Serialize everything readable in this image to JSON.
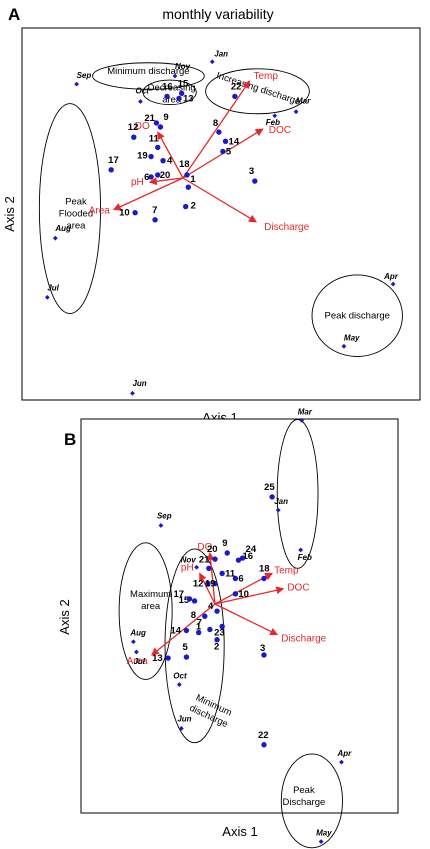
{
  "figure": {
    "colors": {
      "site_point": "#1a1acc",
      "month_marker": "#1a1acc",
      "vector": "#e8282a",
      "ellipse": "#000000"
    }
  },
  "chart_data": [
    {
      "type": "scatter",
      "panel": "A",
      "title": "monthly variability",
      "xlabel": "Axis 1",
      "ylabel": "Axis 2",
      "grid": false,
      "sites": [
        {
          "label": "1",
          "x": 0.04,
          "y": -0.09
        },
        {
          "label": "2",
          "x": 0.02,
          "y": -0.28
        },
        {
          "label": "3",
          "x": 0.54,
          "y": -0.03
        },
        {
          "label": "4",
          "x": -0.15,
          "y": 0.17
        },
        {
          "label": "5",
          "x": 0.3,
          "y": 0.26
        },
        {
          "label": "6",
          "x": -0.24,
          "y": 0.01
        },
        {
          "label": "7",
          "x": -0.21,
          "y": -0.41
        },
        {
          "label": "8",
          "x": 0.27,
          "y": 0.45
        },
        {
          "label": "9",
          "x": -0.17,
          "y": 0.5
        },
        {
          "label": "10",
          "x": -0.36,
          "y": -0.34
        },
        {
          "label": "11",
          "x": -0.19,
          "y": 0.3
        },
        {
          "label": "12",
          "x": -0.37,
          "y": 0.4
        },
        {
          "label": "13",
          "x": -0.03,
          "y": 0.78
        },
        {
          "label": "14",
          "x": 0.32,
          "y": 0.36
        },
        {
          "label": "15",
          "x": -0.01,
          "y": 0.83
        },
        {
          "label": "16",
          "x": -0.12,
          "y": 0.8
        },
        {
          "label": "17",
          "x": -0.54,
          "y": 0.08
        },
        {
          "label": "18",
          "x": 0.03,
          "y": 0.03
        },
        {
          "label": "19",
          "x": -0.24,
          "y": 0.21
        },
        {
          "label": "20",
          "x": -0.19,
          "y": 0.03
        },
        {
          "label": "21",
          "x": -0.2,
          "y": 0.54
        },
        {
          "label": "22",
          "x": 0.39,
          "y": 0.8
        }
      ],
      "months": [
        {
          "label": "Jan",
          "x": 0.22,
          "y": 1.14
        },
        {
          "label": "Feb",
          "x": 0.69,
          "y": 0.61
        },
        {
          "label": "Mar",
          "x": 0.85,
          "y": 0.65
        },
        {
          "label": "Apr",
          "x": 1.58,
          "y": -1.04
        },
        {
          "label": "May",
          "x": 1.21,
          "y": -1.65
        },
        {
          "label": "Jun",
          "x": -0.38,
          "y": -2.11
        },
        {
          "label": "Jul",
          "x": -1.02,
          "y": -1.17
        },
        {
          "label": "Aug",
          "x": -0.96,
          "y": -0.59
        },
        {
          "label": "Sep",
          "x": -0.8,
          "y": 0.92
        },
        {
          "label": "Oct",
          "x": -0.32,
          "y": 0.75
        },
        {
          "label": "Nov",
          "x": -0.06,
          "y": 1.0
        }
      ],
      "vectors": [
        {
          "label": "Temp",
          "x": 0.5,
          "y": 0.95
        },
        {
          "label": "DOC",
          "x": 0.6,
          "y": 0.48
        },
        {
          "label": "Discharge",
          "x": 0.55,
          "y": -0.43
        },
        {
          "label": "DO",
          "x": -0.19,
          "y": 0.45
        },
        {
          "label": "pH",
          "x": -0.25,
          "y": -0.04
        },
        {
          "label": "Area",
          "x": -0.52,
          "y": -0.31
        }
      ],
      "groups": [
        {
          "label": "Minimum discharge",
          "cx": -0.26,
          "cy": 1.0,
          "rx": 0.42,
          "ry": 0.13
        },
        {
          "label": "Decreasing area",
          "cx": -0.1,
          "cy": 0.84,
          "rx": 0.2,
          "ry": 0.12
        },
        {
          "label": "Increasing discharge",
          "cx": 0.56,
          "cy": 0.85,
          "rx": 0.39,
          "ry": 0.22
        },
        {
          "label": "Peak Flooded area",
          "cx": -0.85,
          "cy": -0.3,
          "rx": 0.23,
          "ry": 1.03
        },
        {
          "label": "Peak discharge",
          "cx": 1.31,
          "cy": -1.35,
          "rx": 0.34,
          "ry": 0.4
        }
      ]
    },
    {
      "type": "scatter",
      "panel": "B",
      "title": "",
      "xlabel": "Axis 1",
      "ylabel": "Axis 2",
      "grid": false,
      "sites": [
        {
          "label": "1",
          "x": -0.05,
          "y": -0.25
        },
        {
          "label": "2",
          "x": 0.02,
          "y": -0.35
        },
        {
          "label": "3",
          "x": 0.48,
          "y": -0.5
        },
        {
          "label": "4",
          "x": 0.02,
          "y": -0.07
        },
        {
          "label": "5",
          "x": -0.28,
          "y": -0.52
        },
        {
          "label": "6",
          "x": 0.2,
          "y": 0.25
        },
        {
          "label": "7",
          "x": -0.16,
          "y": -0.28
        },
        {
          "label": "8",
          "x": -0.1,
          "y": -0.12
        },
        {
          "label": "9",
          "x": 0.12,
          "y": 0.5
        },
        {
          "label": "10",
          "x": 0.2,
          "y": 0.1
        },
        {
          "label": "11",
          "x": 0.07,
          "y": 0.3
        },
        {
          "label": "12",
          "x": -0.07,
          "y": 0.2
        },
        {
          "label": "13",
          "x": -0.46,
          "y": -0.53
        },
        {
          "label": "14",
          "x": -0.28,
          "y": -0.26
        },
        {
          "label": "15",
          "x": -0.2,
          "y": 0.03
        },
        {
          "label": "16",
          "x": 0.23,
          "y": 0.43
        },
        {
          "label": "17",
          "x": -0.25,
          "y": 0.05
        },
        {
          "label": "18",
          "x": 0.48,
          "y": 0.25
        },
        {
          "label": "19",
          "x": 0.0,
          "y": 0.2
        },
        {
          "label": "20",
          "x": 0.0,
          "y": 0.44
        },
        {
          "label": "21",
          "x": -0.06,
          "y": 0.35
        },
        {
          "label": "22",
          "x": 0.48,
          "y": -1.38
        },
        {
          "label": "23",
          "x": 0.07,
          "y": -0.22
        },
        {
          "label": "24",
          "x": 0.27,
          "y": 0.45
        },
        {
          "label": "25",
          "x": 0.56,
          "y": 1.05
        }
      ],
      "months": [
        {
          "label": "Jan",
          "x": 0.62,
          "y": 0.92
        },
        {
          "label": "Feb",
          "x": 0.84,
          "y": 0.53
        },
        {
          "label": "Mar",
          "x": 0.85,
          "y": 1.8
        },
        {
          "label": "Apr",
          "x": 1.24,
          "y": -1.55
        },
        {
          "label": "May",
          "x": 1.04,
          "y": -2.33
        },
        {
          "label": "Jun",
          "x": -0.33,
          "y": -1.22
        },
        {
          "label": "Jul",
          "x": -0.77,
          "y": -0.47
        },
        {
          "label": "Aug",
          "x": -0.8,
          "y": -0.37
        },
        {
          "label": "Sep",
          "x": -0.53,
          "y": 0.77
        },
        {
          "label": "Oct",
          "x": -0.35,
          "y": -0.79
        },
        {
          "label": "Nov",
          "x": -0.18,
          "y": 0.36
        }
      ],
      "vectors": [
        {
          "label": "Temp",
          "x": 0.56,
          "y": 0.3
        },
        {
          "label": "DOC",
          "x": 0.67,
          "y": 0.15
        },
        {
          "label": "Discharge",
          "x": 0.61,
          "y": -0.3
        },
        {
          "label": "DO",
          "x": -0.05,
          "y": 0.5
        },
        {
          "label": "pH",
          "x": -0.15,
          "y": 0.3
        },
        {
          "label": "Area",
          "x": -0.62,
          "y": -0.5
        }
      ],
      "groups": [
        {
          "label": "Maximum area",
          "cx": -0.68,
          "cy": -0.07,
          "rx": 0.26,
          "ry": 0.67
        },
        {
          "label": "Minimum discharge",
          "cx": -0.2,
          "cy": -0.41,
          "rx": 0.29,
          "ry": 0.95
        },
        {
          "label": "",
          "cx": 0.81,
          "cy": 1.08,
          "rx": 0.2,
          "ry": 0.73
        },
        {
          "label": "Peak Discharge",
          "cx": 0.95,
          "cy": -1.93,
          "rx": 0.3,
          "ry": 0.46
        }
      ]
    }
  ]
}
